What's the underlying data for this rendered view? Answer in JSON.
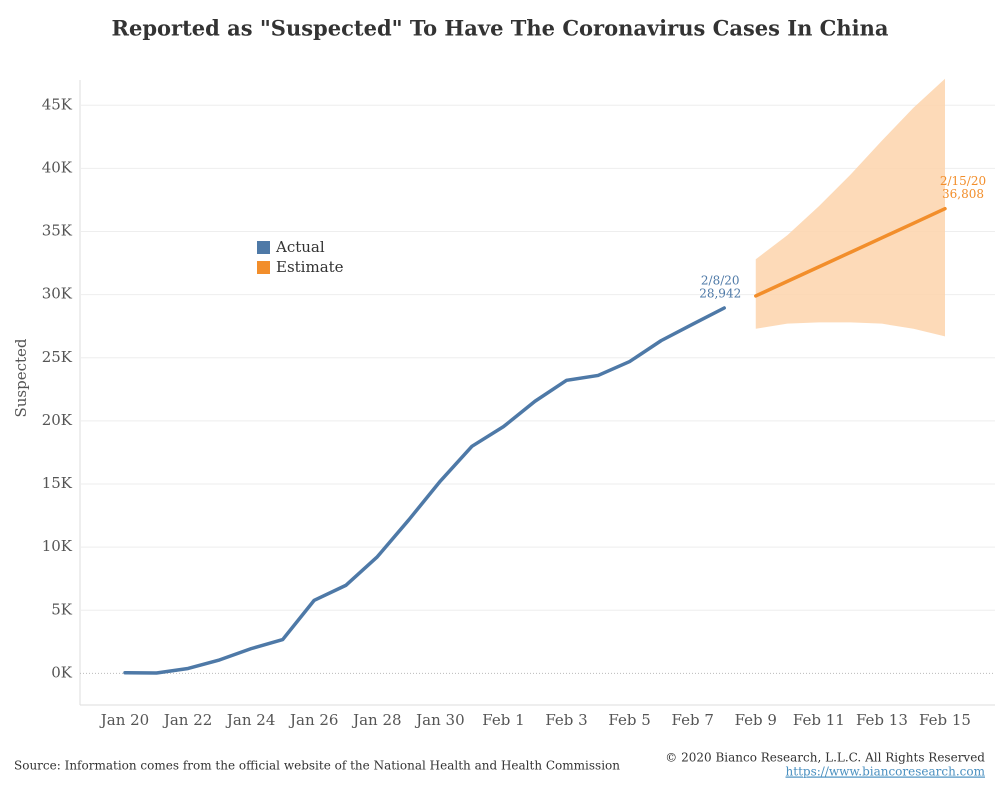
{
  "chart_data": {
    "type": "line",
    "title": "Reported as \"Suspected\" To Have The Coronavirus Cases In China",
    "y_label": "Suspected",
    "source": "Source: Information comes from the official website of the National Health and Health Commission",
    "copyright": "© 2020 Bianco Research, L.L.C. All Rights Reserved",
    "url": "https://www.biancoresearch.com",
    "categories": [
      "Jan 20",
      null,
      "Jan 22",
      null,
      "Jan 24",
      null,
      "Jan 26",
      null,
      "Jan 28",
      null,
      "Jan 30",
      null,
      "Feb 1",
      null,
      "Feb 3",
      null,
      "Feb 5",
      null,
      "Feb 7",
      null,
      "Feb 9",
      null,
      "Feb 11",
      null,
      "Feb 13",
      null,
      "Feb 15"
    ],
    "ylim": [
      -2500,
      47000
    ],
    "yticks": [
      {
        "value": 0,
        "label": "0K"
      },
      {
        "value": 5000,
        "label": "5K"
      },
      {
        "value": 10000,
        "label": "10K"
      },
      {
        "value": 15000,
        "label": "15K"
      },
      {
        "value": 20000,
        "label": "20K"
      },
      {
        "value": 25000,
        "label": "25K"
      },
      {
        "value": 30000,
        "label": "30K"
      },
      {
        "value": 35000,
        "label": "35K"
      },
      {
        "value": 40000,
        "label": "40K"
      },
      {
        "value": 45000,
        "label": "45K"
      }
    ],
    "grid": true,
    "series": [
      {
        "name": "Actual",
        "color": "#4e79a7",
        "values": [
          54,
          37,
          393,
          1072,
          1965,
          2684,
          5794,
          6973,
          9239,
          12167,
          15238,
          17988,
          19544,
          21558,
          23214,
          23600,
          24702,
          26359,
          27657,
          28942,
          null,
          null,
          null,
          null,
          null,
          null,
          null
        ],
        "value_labels": [
          null,
          null,
          null,
          null,
          null,
          null,
          null,
          null,
          null,
          null,
          null,
          null,
          null,
          null,
          null,
          null,
          null,
          null,
          null,
          "28,942",
          null,
          null,
          null,
          null,
          null,
          null,
          null
        ],
        "annotations": [
          null,
          null,
          null,
          null,
          null,
          null,
          null,
          null,
          null,
          null,
          null,
          null,
          null,
          null,
          null,
          null,
          null,
          null,
          null,
          "2/8/20",
          null,
          null,
          null,
          null,
          null,
          null,
          null
        ]
      },
      {
        "name": "Estimate",
        "color": "#f28e2b",
        "band_color": "#fdd3ab",
        "values": [
          null,
          null,
          null,
          null,
          null,
          null,
          null,
          null,
          null,
          null,
          null,
          null,
          null,
          null,
          null,
          null,
          null,
          null,
          null,
          null,
          29900,
          31050,
          32200,
          33350,
          34500,
          35650,
          36808
        ],
        "upper": [
          null,
          null,
          null,
          null,
          null,
          null,
          null,
          null,
          null,
          null,
          null,
          null,
          null,
          null,
          null,
          null,
          null,
          null,
          null,
          null,
          32800,
          34700,
          37000,
          39500,
          42200,
          44800,
          47100
        ],
        "lower": [
          null,
          null,
          null,
          null,
          null,
          null,
          null,
          null,
          null,
          null,
          null,
          null,
          null,
          null,
          null,
          null,
          null,
          null,
          null,
          null,
          27300,
          27700,
          27800,
          27800,
          27700,
          27300,
          26700
        ],
        "value_labels": [
          null,
          null,
          null,
          null,
          null,
          null,
          null,
          null,
          null,
          null,
          null,
          null,
          null,
          null,
          null,
          null,
          null,
          null,
          null,
          null,
          null,
          null,
          null,
          null,
          null,
          null,
          "36,808"
        ],
        "annotations": [
          null,
          null,
          null,
          null,
          null,
          null,
          null,
          null,
          null,
          null,
          null,
          null,
          null,
          null,
          null,
          null,
          null,
          null,
          null,
          null,
          null,
          null,
          null,
          null,
          null,
          null,
          "2/15/20"
        ]
      }
    ]
  }
}
